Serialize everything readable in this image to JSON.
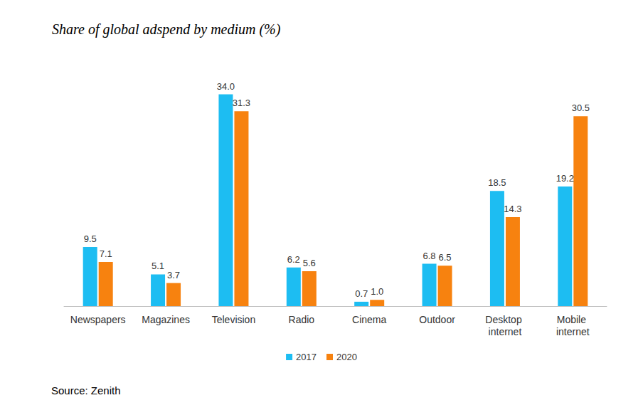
{
  "chart_data": {
    "type": "bar",
    "title": "Share of global adspend by medium (%)",
    "source": "Source: Zenith",
    "categories": [
      "Newspapers",
      "Magazines",
      "Television",
      "Radio",
      "Cinema",
      "Outdoor",
      "Desktop internet",
      "Mobile internet"
    ],
    "series": [
      {
        "name": "2017",
        "color": "#1dbdf2",
        "values": [
          9.5,
          5.1,
          34.0,
          6.2,
          0.7,
          6.8,
          18.5,
          19.2
        ],
        "value_labels": [
          "9.5",
          "5.1",
          "34.0",
          "6.2",
          "0.7",
          "6.8",
          "18.5",
          "19.2"
        ]
      },
      {
        "name": "2020",
        "color": "#f7820f",
        "values": [
          7.1,
          3.7,
          31.3,
          5.6,
          1.0,
          6.5,
          14.3,
          30.5
        ],
        "value_labels": [
          "7.1",
          "3.7",
          "31.3",
          "5.6",
          "1.0",
          "6.5",
          "14.3",
          "30.5"
        ]
      }
    ],
    "ylim": [
      0,
      40
    ],
    "yticks": [
      0,
      10,
      20,
      30,
      40
    ],
    "grid": false,
    "legend": "bottom",
    "data_labels": true,
    "tick_labels": "x"
  }
}
